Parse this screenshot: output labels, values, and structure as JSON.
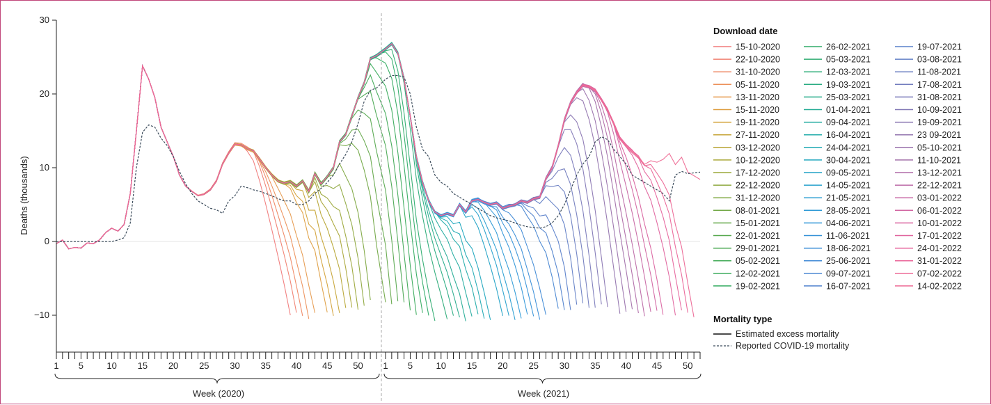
{
  "chart_data": {
    "type": "line",
    "ylabel": "Deaths (thousands)",
    "ylim": [
      -15,
      30
    ],
    "yticks": [
      -10,
      0,
      10,
      20,
      30
    ],
    "x_week_ticks": [
      1,
      5,
      10,
      15,
      20,
      25,
      30,
      35,
      40,
      45,
      50
    ],
    "groups": [
      {
        "label": "Week (2020)"
      },
      {
        "label": "Week (2021)"
      }
    ],
    "legend_download": {
      "title": "Download date",
      "dates": [
        "15-10-2020",
        "22-10-2020",
        "31-10-2020",
        "05-11-2020",
        "13-11-2020",
        "15-11-2020",
        "19-11-2020",
        "27-11-2020",
        "03-12-2020",
        "10-12-2020",
        "17-12-2020",
        "22-12-2020",
        "31-12-2020",
        "08-01-2021",
        "15-01-2021",
        "22-01-2021",
        "29-01-2021",
        "05-02-2021",
        "12-02-2021",
        "19-02-2021",
        "26-02-2021",
        "05-03-2021",
        "12-03-2021",
        "19-03-2021",
        "25-03-2021",
        "01-04-2021",
        "09-04-2021",
        "16-04-2021",
        "24-04-2021",
        "30-04-2021",
        "09-05-2021",
        "14-05-2021",
        "21-05-2021",
        "28-05-2021",
        "04-06-2021",
        "11-06-2021",
        "18-06-2021",
        "25-06-2021",
        "09-07-2021",
        "16-07-2021",
        "19-07-2021",
        "03-08-2021",
        "11-08-2021",
        "17-08-2021",
        "31-08-2021",
        "10-09-2021",
        "19-09-2021",
        "23 09-2021",
        "05-10-2021",
        "11-10-2021",
        "13-12-2021",
        "22-12-2021",
        "03-01-2022",
        "06-01-2022",
        "10-01-2022",
        "17-01-2022",
        "24-01-2022",
        "31-01-2022",
        "07-02-2022",
        "14-02-2022"
      ],
      "colors": [
        "#f07a7a",
        "#f08070",
        "#ef8864",
        "#ec905a",
        "#e69a4e",
        "#de9e40",
        "#d4a23a",
        "#c6a436",
        "#b8a636",
        "#aaa738",
        "#9ca83a",
        "#8ea83e",
        "#80a842",
        "#72a846",
        "#64a84a",
        "#56a84e",
        "#4aa852",
        "#40a956",
        "#38aa5a",
        "#34ab60",
        "#30ac68",
        "#2eac70",
        "#2cac78",
        "#2aac82",
        "#28ac8c",
        "#26ac96",
        "#24aca0",
        "#22acaa",
        "#20aab4",
        "#20a6be",
        "#22a2c6",
        "#26a0cc",
        "#2a9ed2",
        "#2e9ad6",
        "#3296d8",
        "#3692d8",
        "#3a8ed8",
        "#408ad6",
        "#4886d2",
        "#5082ce",
        "#5a80ca",
        "#6280c6",
        "#6a7ec2",
        "#727cbe",
        "#7a7aba",
        "#8278b6",
        "#8a76b2",
        "#9274ae",
        "#9a72ac",
        "#a270aa",
        "#b06ca8",
        "#bc6aa6",
        "#c868a4",
        "#d266a2",
        "#da64a0",
        "#e0649e",
        "#e6649c",
        "#ea6699",
        "#ec6896",
        "#ee6a94"
      ]
    },
    "legend_mortality": {
      "title": "Mortality type",
      "items": [
        {
          "label": "Estimated excess mortality",
          "style": "solid"
        },
        {
          "label": "Reported COVID-19 mortality",
          "style": "dashed"
        }
      ]
    },
    "excess_full_2020": [
      -0.3,
      0.2,
      -1.0,
      -0.8,
      -0.9,
      -0.2,
      -0.3,
      0.2,
      1.2,
      1.8,
      1.4,
      2.3,
      6.5,
      15.0,
      23.8,
      22.0,
      19.5,
      15.5,
      13.5,
      11.5,
      9.0,
      7.5,
      6.8,
      6.2,
      6.4,
      7.0,
      8.2,
      10.5,
      12.0,
      13.2,
      13.1,
      12.6,
      12.3,
      11.2,
      10.0,
      9.0,
      8.2,
      7.9,
      8.1,
      7.5,
      8.2,
      6.8,
      9.2,
      7.8,
      8.8,
      10.0,
      13.5,
      14.5,
      17.0,
      19.5,
      21.5,
      24.8,
      25.2
    ],
    "excess_full_2021": [
      26.1,
      26.8,
      25.5,
      22.0,
      17.0,
      11.5,
      8.0,
      5.5,
      4.0,
      3.5,
      3.8,
      3.5,
      5.0,
      4.0,
      5.5,
      5.7,
      5.3,
      5.0,
      5.2,
      4.5,
      4.8,
      5.0,
      5.5,
      5.3,
      5.8,
      6.0,
      8.5,
      10.0,
      13.0,
      16.5,
      18.8,
      20.2,
      21.2,
      21.0,
      20.5,
      19.2,
      17.8,
      16.0,
      14.0,
      13.0,
      12.2,
      11.5,
      10.5,
      11.0,
      10.8,
      11.2,
      12.0,
      10.5,
      11.5,
      9.5,
      9.0,
      8.5
    ],
    "reported_2020": [
      0,
      0,
      0,
      0,
      0,
      0,
      0,
      0,
      0,
      0,
      0.2,
      0.5,
      2.5,
      10.0,
      14.8,
      15.8,
      15.5,
      14.0,
      13.0,
      11.5,
      9.5,
      7.8,
      6.5,
      5.5,
      5.0,
      4.5,
      4.3,
      3.8,
      5.5,
      6.2,
      7.5,
      7.3,
      7.0,
      6.8,
      6.5,
      6.2,
      5.8,
      5.5,
      5.5,
      5.0,
      5.0,
      5.5,
      6.5,
      7.2,
      8.0,
      9.0,
      10.5,
      11.8,
      13.5,
      16.0,
      19.0,
      20.5,
      20.8
    ],
    "reported_2021": [
      22.0,
      22.5,
      22.5,
      22.3,
      20.0,
      15.5,
      12.5,
      11.5,
      9.0,
      8.0,
      7.5,
      6.5,
      6.0,
      5.5,
      5.0,
      4.5,
      4.0,
      3.5,
      3.2,
      3.0,
      2.8,
      2.5,
      2.2,
      2.0,
      1.9,
      1.8,
      2.0,
      2.5,
      3.5,
      5.0,
      7.0,
      9.0,
      10.5,
      11.5,
      13.5,
      14.2,
      13.8,
      12.5,
      11.5,
      10.5,
      9.0,
      8.5,
      8.0,
      7.5,
      7.0,
      6.5,
      5.5,
      9.0,
      9.5,
      9.2,
      9.3,
      9.4
    ]
  }
}
